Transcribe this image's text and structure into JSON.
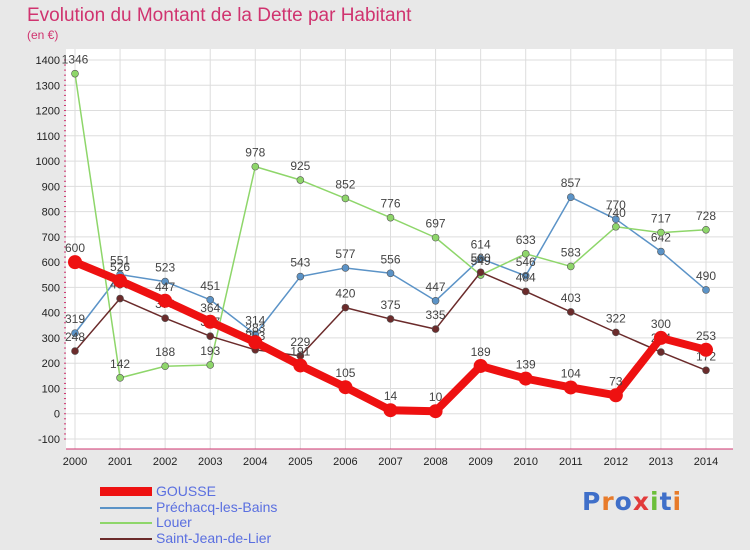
{
  "title": "Evolution du Montant de la Dette par Habitant",
  "unit": "(en €)",
  "logo": {
    "letters": [
      "P",
      "r",
      "o",
      "x",
      "i",
      "t",
      "i"
    ],
    "colors": [
      "#3f6fc9",
      "#e87b2a",
      "#3f6fc9",
      "#e23b3b",
      "#6cbf3a",
      "#3f6fc9",
      "#e87b2a"
    ]
  },
  "chart_data": {
    "type": "line",
    "x": [
      "2000",
      "2001",
      "2002",
      "2003",
      "2004",
      "2005",
      "2006",
      "2007",
      "2008",
      "2009",
      "2010",
      "2011",
      "2012",
      "2013",
      "2014"
    ],
    "ylim": [
      -100,
      1400
    ],
    "yticks": [
      "-100",
      "0",
      "100",
      "200",
      "300",
      "400",
      "500",
      "600",
      "700",
      "800",
      "900",
      "1000",
      "1100",
      "1200",
      "1300",
      "1400"
    ],
    "grid": true,
    "legend_position": "bottom-left",
    "series": [
      {
        "name": "GOUSSE",
        "color": "#ee1111",
        "values": [
          600,
          526,
          447,
          364,
          283,
          191,
          105,
          14,
          10,
          189,
          139,
          104,
          73,
          300,
          253
        ]
      },
      {
        "name": "Préchacq-les-Bains",
        "color": "#5b93c7",
        "values": [
          319,
          551,
          523,
          451,
          314,
          543,
          577,
          556,
          447,
          614,
          546,
          857,
          770,
          642,
          490
        ]
      },
      {
        "name": "Louer",
        "color": "#8ed66a",
        "values": [
          1346,
          142,
          188,
          193,
          978,
          925,
          852,
          776,
          697,
          549,
          633,
          583,
          740,
          717,
          728
        ]
      },
      {
        "name": "Saint-Jean-de-Lier",
        "color": "#6b2b2b",
        "values": [
          248,
          456,
          378,
          307,
          253,
          229,
          420,
          375,
          335,
          560,
          484,
          403,
          322,
          244,
          172
        ]
      }
    ]
  }
}
